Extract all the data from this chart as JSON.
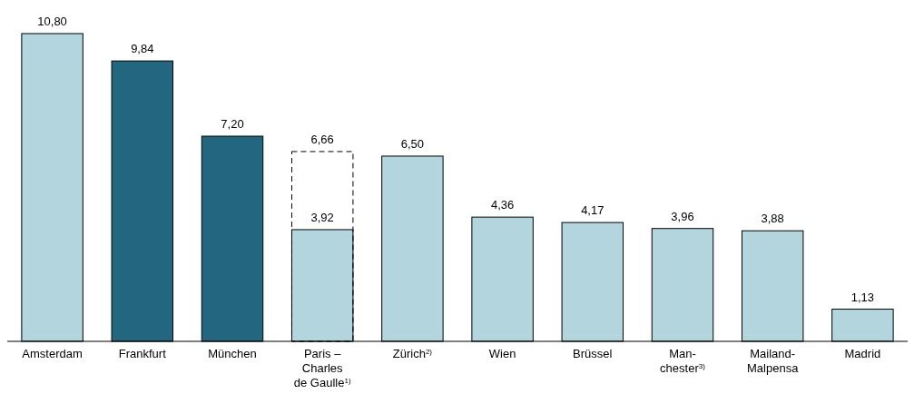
{
  "chart_data": {
    "type": "bar",
    "categories": [
      "Amsterdam",
      "Frankfurt",
      "München",
      "Paris –\nCharles\nde Gaulle$^{1)}$",
      "Zürich$^{2)}$",
      "Wien",
      "Brüssel",
      "Man-\nchester$^{3)}$",
      "Mailand-\nMalpensa",
      "Madrid"
    ],
    "series": [
      {
        "colors": [
          "#b2d5de",
          "#236680",
          "#236680",
          "#b2d5de",
          "#b2d5de",
          "#b2d5de",
          "#b2d5de",
          "#b2d5de",
          "#b2d5de",
          "#b2d5de"
        ],
        "values": [
          10.8,
          9.84,
          7.2,
          3.92,
          6.5,
          4.36,
          4.17,
          3.96,
          3.88,
          1.13
        ],
        "value_labels": [
          "10,80",
          "9,84",
          "7,20",
          "3,92",
          "6,50",
          "4,36",
          "4,17",
          "3,96",
          "3,88",
          "1,13"
        ]
      },
      {
        "color": "#000000",
        "line_style": "dashed",
        "values": [
          null,
          null,
          null,
          6.66,
          null,
          null,
          null,
          null,
          null,
          null
        ],
        "value_labels": [
          null,
          null,
          null,
          "6,66",
          null,
          null,
          null,
          null,
          null,
          null
        ]
      }
    ]
  }
}
